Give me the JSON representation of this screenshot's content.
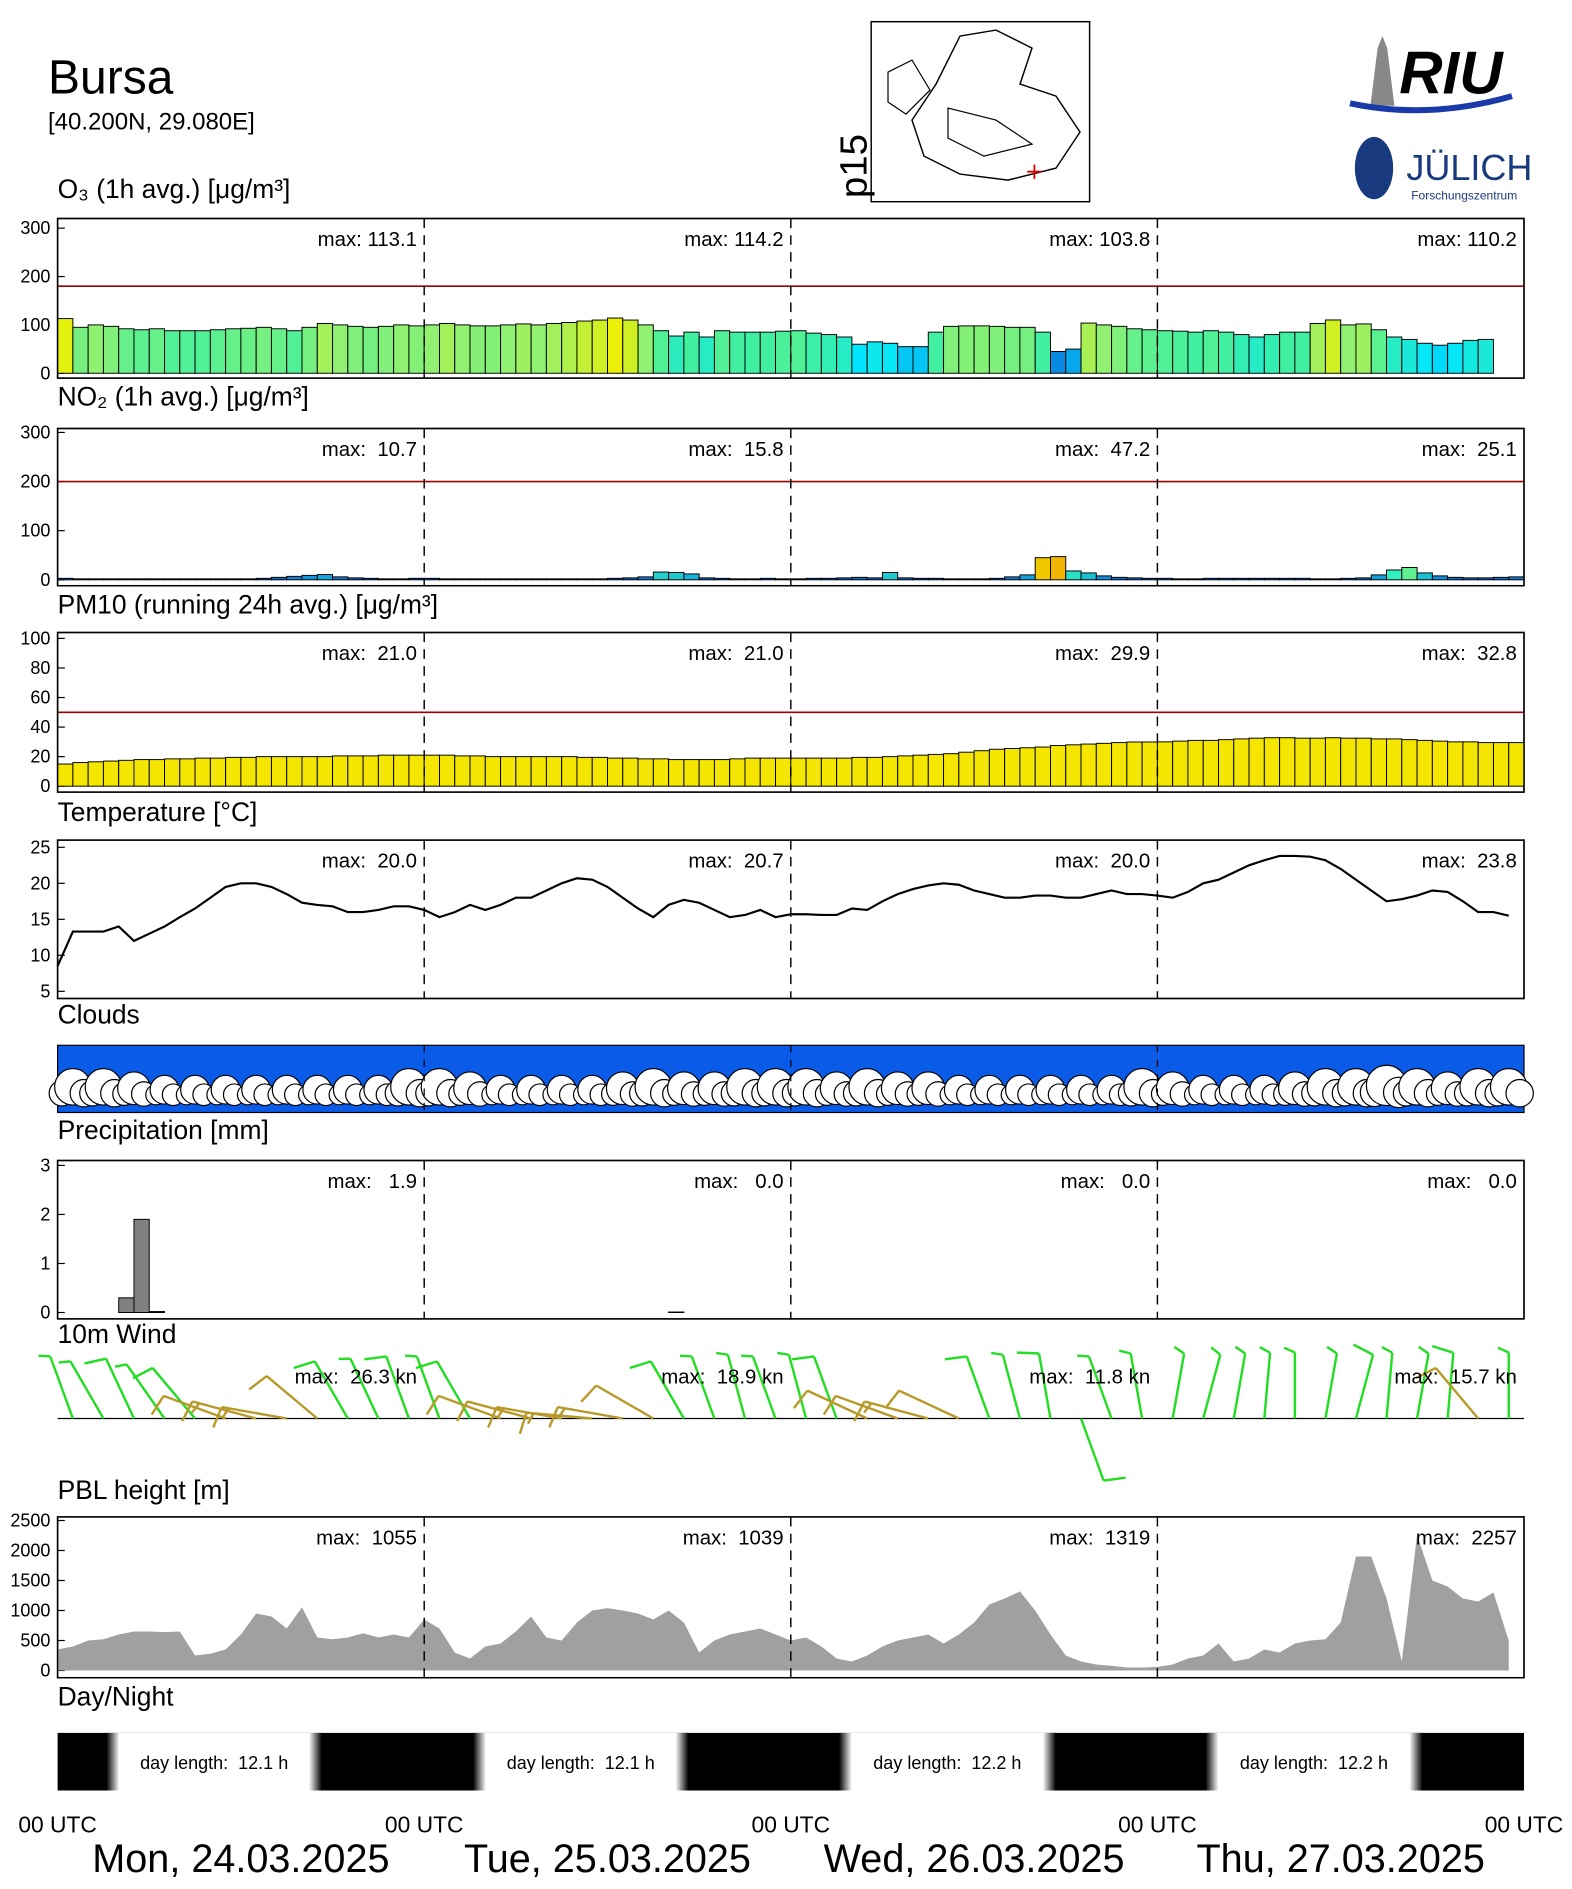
{
  "header": {
    "title": "Bursa",
    "coords": "[40.200N, 29.080E]",
    "p_label": "p15",
    "logo_riu": "RIU",
    "logo_julich": "JÜLICH",
    "logo_fz": "Forschungszentrum"
  },
  "x_axis": {
    "tick_labels": [
      "00 UTC",
      "00 UTC",
      "00 UTC",
      "00 UTC",
      "00 UTC"
    ],
    "dates": [
      "Mon, 24.03.2025",
      "Tue, 25.03.2025",
      "Wed, 26.03.2025",
      "Thu, 27.03.2025"
    ]
  },
  "chart_data": [
    {
      "type": "bar",
      "title": "O₃ (1h avg.) [μg/m³]",
      "ylim": [
        -10,
        320
      ],
      "yticks": [
        0,
        100,
        200,
        300
      ],
      "threshold": 180,
      "threshold_color": "#a00000",
      "max_labels": [
        "max: 113.1",
        "max: 114.2",
        "max: 103.8",
        "max: 110.2"
      ],
      "colorscale": [
        [
          40,
          "#0a6ad8"
        ],
        [
          60,
          "#00e5ff"
        ],
        [
          85,
          "#40f0a0"
        ],
        [
          100,
          "#90f070"
        ],
        [
          115,
          "#f0f000"
        ]
      ],
      "values": [
        113.1,
        95,
        100,
        97,
        92,
        90,
        92,
        88,
        88,
        88,
        90,
        92,
        93,
        95,
        92,
        88,
        95,
        103,
        100,
        97,
        95,
        97,
        100,
        98,
        100,
        103,
        100,
        98,
        98,
        100,
        102,
        100,
        103,
        105,
        108,
        110,
        114.2,
        110,
        100,
        88,
        77,
        85,
        75,
        88,
        85,
        85,
        85,
        87,
        88,
        83,
        80,
        75,
        60,
        65,
        62,
        55,
        55,
        85,
        97,
        98,
        98,
        97,
        95,
        95,
        85,
        45,
        50,
        103.8,
        100,
        97,
        92,
        90,
        88,
        87,
        85,
        88,
        85,
        80,
        75,
        80,
        85,
        85,
        103,
        110.2,
        100,
        102,
        90,
        75,
        70,
        62,
        58,
        62,
        68,
        70,
        null,
        null
      ]
    },
    {
      "type": "bar",
      "title": "NO₂ (1h avg.) [μg/m³]",
      "ylim": [
        -12,
        308
      ],
      "yticks": [
        0,
        100,
        200,
        300
      ],
      "threshold": 200,
      "threshold_color": "#a00000",
      "max_labels": [
        "max:  10.7",
        "max:  15.8",
        "max:  47.2",
        "max:  25.1"
      ],
      "colorscale": [
        [
          0,
          "#1040c0"
        ],
        [
          10,
          "#10a0e0"
        ],
        [
          20,
          "#30f0c0"
        ],
        [
          40,
          "#f0f000"
        ],
        [
          50,
          "#f0a000"
        ]
      ],
      "values": [
        3,
        2,
        2,
        2,
        2,
        2,
        2,
        2,
        2,
        2,
        2,
        2,
        2,
        3,
        5,
        7,
        9,
        10.7,
        6,
        4,
        3,
        2,
        2,
        3,
        3,
        2,
        2,
        2,
        2,
        2,
        2,
        2,
        2,
        2,
        2,
        2,
        3,
        4,
        6,
        15.8,
        15,
        12,
        4,
        3,
        2,
        2,
        3,
        2,
        2,
        3,
        3,
        4,
        5,
        4,
        15,
        4,
        3,
        3,
        2,
        2,
        2,
        3,
        6,
        10,
        45,
        47.2,
        18,
        14,
        8,
        5,
        4,
        3,
        3,
        2,
        2,
        3,
        3,
        3,
        3,
        3,
        3,
        3,
        2,
        2,
        3,
        4,
        10,
        20,
        25.1,
        14,
        8,
        5,
        4,
        4,
        5,
        6
      ]
    },
    {
      "type": "bar",
      "title": "PM10 (running 24h avg.) [μg/m³]",
      "ylim": [
        -4,
        104
      ],
      "yticks": [
        0,
        20,
        40,
        60,
        80,
        100
      ],
      "threshold": 50,
      "threshold_color": "#a00000",
      "max_labels": [
        "max:  21.0",
        "max:  21.0",
        "max:  29.9",
        "max:  32.8"
      ],
      "color": "#f5e600",
      "values": [
        15,
        16,
        16.5,
        17,
        17.5,
        18,
        18,
        18.5,
        18.5,
        19,
        19,
        19.5,
        19.5,
        20,
        20,
        20,
        20,
        20,
        20.5,
        20.5,
        20.5,
        21,
        21,
        21,
        21,
        21,
        20.5,
        20.5,
        20,
        20,
        20,
        20,
        20,
        20,
        19.5,
        19.5,
        19,
        19,
        18.5,
        18.5,
        18,
        18,
        18,
        18,
        18.5,
        19,
        19,
        19,
        19,
        19,
        19,
        19,
        19.5,
        19.5,
        20,
        20.5,
        21,
        21.5,
        22,
        23,
        24,
        25,
        25.5,
        26,
        26.5,
        27.5,
        28,
        28.5,
        29,
        29.5,
        29.9,
        29.9,
        30,
        30.5,
        31,
        31,
        31.5,
        32,
        32.5,
        32.8,
        32.8,
        32.5,
        32.5,
        32.8,
        32.5,
        32.5,
        32,
        32,
        31.5,
        31,
        30.5,
        30,
        30,
        29.5,
        29.5,
        29.5
      ]
    },
    {
      "type": "line",
      "title": "Temperature [°C]",
      "ylim": [
        4,
        26
      ],
      "yticks": [
        5,
        10,
        15,
        20,
        25
      ],
      "color": "#000000",
      "max_labels": [
        "max:  20.0",
        "max:  20.7",
        "max:  20.0",
        "max:  23.8"
      ],
      "values": [
        8.5,
        13.3,
        13.3,
        13.3,
        14,
        12,
        13,
        14,
        15.3,
        16.5,
        18,
        19.5,
        20,
        20,
        19.5,
        18.5,
        17.3,
        17,
        16.8,
        16,
        16,
        16.3,
        16.8,
        16.8,
        16.3,
        15.3,
        16,
        17,
        16.3,
        17,
        18,
        18,
        19,
        20,
        20.7,
        20.5,
        19.5,
        18,
        16.5,
        15.3,
        17,
        17.7,
        17.3,
        16.3,
        15.3,
        15.6,
        16.3,
        15.3,
        15.7,
        15.7,
        15.6,
        15.6,
        16.5,
        16.3,
        17.5,
        18.5,
        19.2,
        19.7,
        20,
        19.8,
        19,
        18.5,
        18,
        18,
        18.3,
        18.3,
        18,
        18,
        18.5,
        19,
        18.5,
        18.5,
        18.3,
        18,
        18.8,
        20,
        20.5,
        21.5,
        22.5,
        23.2,
        23.8,
        23.8,
        23.7,
        23.2,
        22,
        20.5,
        19,
        17.5,
        17.8,
        18.3,
        19,
        18.8,
        17.5,
        16,
        16,
        15.5
      ]
    },
    {
      "type": "clouds",
      "title": "Clouds",
      "color": "#0a5ce8",
      "values": [
        7,
        7,
        6,
        5,
        5,
        5,
        5,
        5,
        5,
        5,
        5,
        7,
        7,
        6,
        5,
        5,
        5,
        5,
        6,
        7,
        6,
        6,
        7,
        7,
        7,
        6,
        7,
        6,
        6,
        5,
        5,
        5,
        5,
        5,
        5,
        7,
        6,
        5,
        5,
        5,
        6,
        7,
        7,
        8,
        7,
        6,
        7,
        7
      ]
    },
    {
      "type": "bar",
      "title": "Precipitation [mm]",
      "ylim": [
        -0.13,
        3.1
      ],
      "yticks": [
        0,
        1,
        2,
        3
      ],
      "color": "#808080",
      "max_labels": [
        "max:   1.9",
        "max:   0.0",
        "max:   0.0",
        "max:   0.0"
      ],
      "values": [
        0,
        0,
        0,
        0,
        0.3,
        1.9,
        0.02,
        0,
        0,
        0,
        0,
        0,
        0,
        0,
        0,
        0,
        0,
        0,
        0,
        0,
        0,
        0,
        0,
        0,
        0,
        0,
        0,
        0,
        0,
        0,
        0,
        0,
        0,
        0,
        0,
        0,
        0,
        0,
        0,
        0,
        0.01,
        0,
        0,
        0,
        0,
        0,
        0,
        0,
        0,
        0,
        0,
        0,
        0,
        0,
        0,
        0,
        0,
        0,
        0,
        0,
        0,
        0,
        0,
        0,
        0,
        0,
        0,
        0,
        0,
        0,
        0,
        0,
        0,
        0,
        0,
        0,
        0,
        0,
        0,
        0,
        0,
        0,
        0,
        0,
        0,
        0,
        0,
        0,
        0,
        0,
        0,
        0,
        0,
        0,
        0,
        0
      ]
    },
    {
      "type": "wind",
      "title": "10m Wind",
      "colors": [
        "#22dd22",
        "#b89a2a"
      ],
      "color_threshold": 10,
      "max_labels": [
        "max:  26.3 kn",
        "max:  18.9 kn",
        "max:  11.8 kn",
        "max:  15.7 kn"
      ],
      "speed": [
        6,
        7,
        8,
        7,
        8,
        12,
        14,
        15,
        10,
        8,
        7,
        8,
        7,
        8,
        10,
        12,
        14,
        16,
        15,
        10,
        8,
        7,
        6,
        7,
        6,
        8,
        10,
        12,
        13,
        12,
        8,
        7,
        8,
        9,
        7,
        6,
        5,
        6,
        7,
        6,
        6,
        7,
        8,
        7,
        6,
        8,
        10,
        7
      ],
      "direction": [
        200,
        210,
        205,
        215,
        220,
        250,
        255,
        260,
        230,
        210,
        205,
        200,
        200,
        210,
        250,
        255,
        260,
        265,
        260,
        240,
        210,
        200,
        195,
        200,
        195,
        200,
        245,
        250,
        255,
        245,
        200,
        195,
        190,
        20,
        200,
        190,
        170,
        165,
        170,
        175,
        180,
        170,
        165,
        175,
        170,
        175,
        220,
        180
      ]
    },
    {
      "type": "area",
      "title": "PBL height [m]",
      "ylim": [
        -120,
        2560
      ],
      "yticks": [
        0,
        500,
        1000,
        1500,
        2000,
        2500
      ],
      "color": "#a0a0a0",
      "max_labels": [
        "max:  1055",
        "max:  1039",
        "max:  1319",
        "max:  2257"
      ],
      "values": [
        350,
        400,
        500,
        520,
        600,
        650,
        650,
        640,
        650,
        250,
        280,
        350,
        600,
        950,
        900,
        700,
        1055,
        550,
        520,
        550,
        620,
        550,
        600,
        550,
        850,
        700,
        300,
        200,
        400,
        450,
        650,
        900,
        550,
        500,
        800,
        1000,
        1039,
        1000,
        950,
        850,
        1000,
        800,
        300,
        500,
        600,
        650,
        700,
        600,
        500,
        550,
        400,
        200,
        150,
        250,
        400,
        500,
        550,
        600,
        450,
        600,
        800,
        1100,
        1200,
        1319,
        1000,
        600,
        250,
        150,
        100,
        80,
        50,
        50,
        60,
        100,
        200,
        250,
        450,
        150,
        200,
        350,
        300,
        450,
        500,
        520,
        800,
        1900,
        1900,
        1200,
        150,
        2257,
        1500,
        1400,
        1200,
        1150,
        1300,
        500
      ]
    },
    {
      "type": "daynight",
      "title": "Day/Night",
      "sunrise_hour": [
        4.2,
        4.2,
        4.15,
        4.15
      ],
      "values": [
        12.1,
        12.1,
        12.2,
        12.2
      ],
      "value_labels": [
        "day length:  12.1 h",
        "day length:  12.1 h",
        "day length:  12.2 h",
        "day length:  12.2 h"
      ]
    }
  ]
}
